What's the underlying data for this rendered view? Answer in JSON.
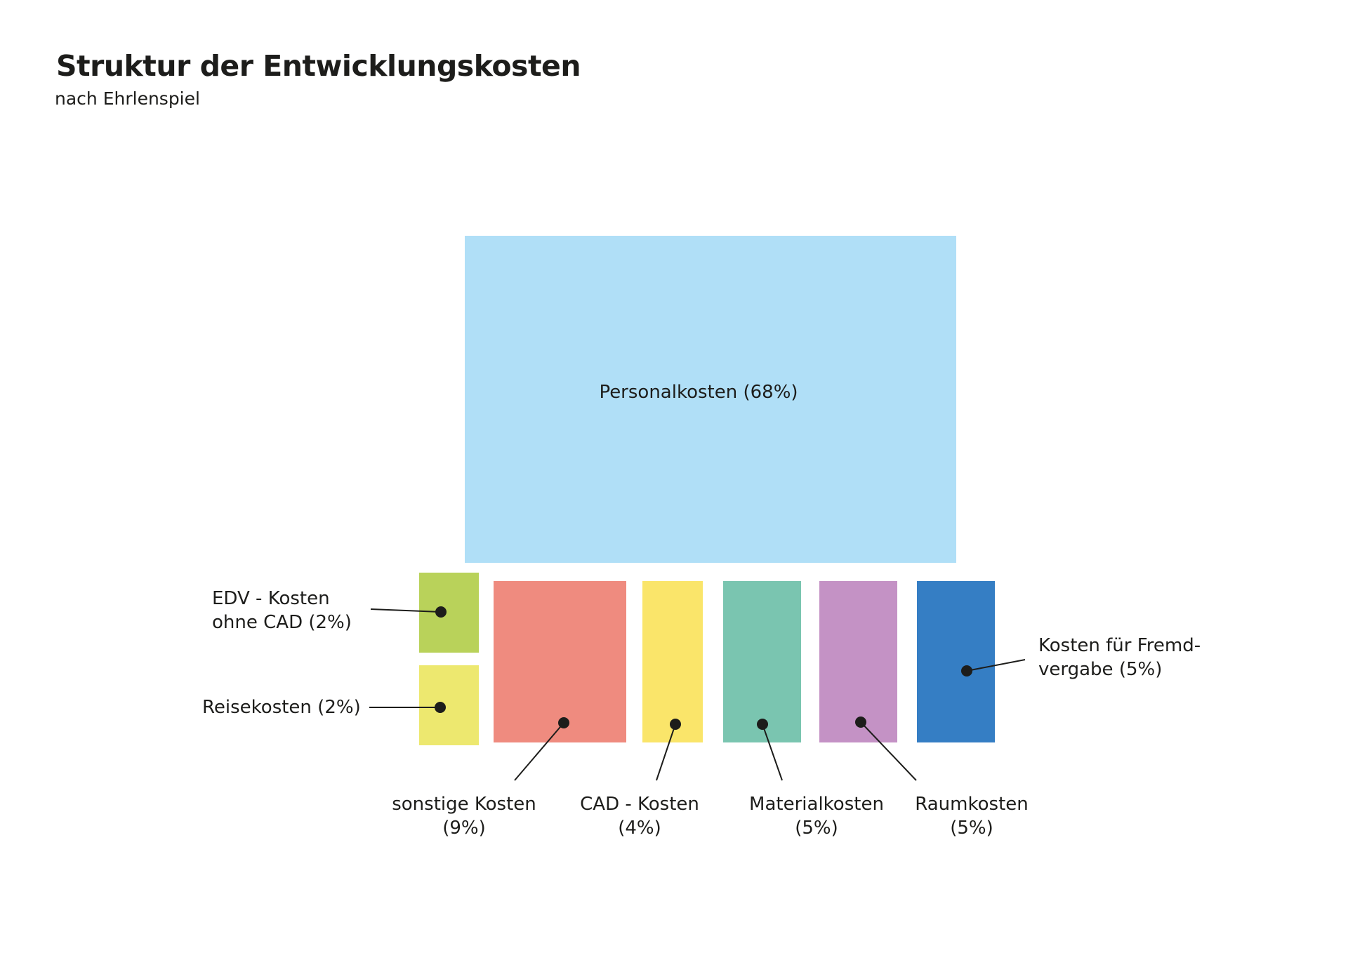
{
  "title": "Struktur der Entwicklungskosten",
  "subtitle": "nach Ehrlenspiel",
  "chart_data": {
    "type": "treemap",
    "unit": "%",
    "items": [
      {
        "name": "Personalkosten",
        "value": 68,
        "label": [
          "Personalkosten (68%)"
        ],
        "color": "#b0dff7"
      },
      {
        "name": "EDV - Kosten ohne CAD",
        "value": 2,
        "label": [
          "EDV - Kosten",
          "ohne CAD (2%)"
        ],
        "color": "#b9d25a"
      },
      {
        "name": "Reisekosten",
        "value": 2,
        "label": [
          "Reisekosten (2%)"
        ],
        "color": "#ede86f"
      },
      {
        "name": "sonstige Kosten",
        "value": 9,
        "label": [
          "sonstige Kosten",
          "(9%)"
        ],
        "color": "#ef8b7f"
      },
      {
        "name": "CAD - Kosten",
        "value": 4,
        "label": [
          "CAD - Kosten",
          "(4%)"
        ],
        "color": "#fae56a"
      },
      {
        "name": "Materialkosten",
        "value": 5,
        "label": [
          "Materialkosten",
          "(5%)"
        ],
        "color": "#7ac5b0"
      },
      {
        "name": "Raumkosten",
        "value": 5,
        "label": [
          "Raumkosten",
          "(5%)"
        ],
        "color": "#c492c5"
      },
      {
        "name": "Kosten für Fremdvergabe",
        "value": 5,
        "label": [
          "Kosten für Fremd-",
          "vergabe (5%)"
        ],
        "color": "#357ec4"
      }
    ]
  }
}
